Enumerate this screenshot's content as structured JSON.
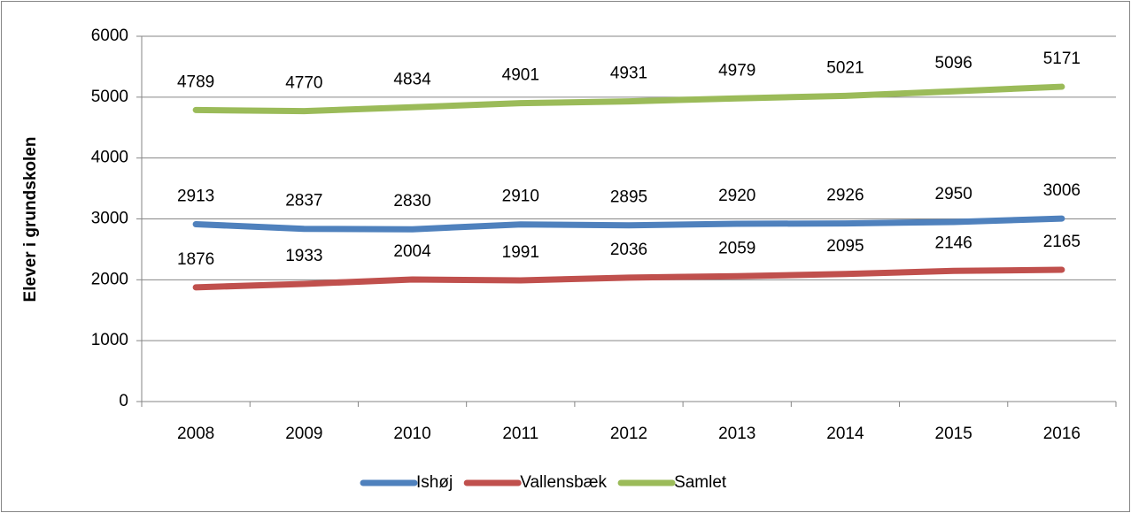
{
  "chart_data": {
    "type": "line",
    "y_label": "Elever i grundskolen",
    "categories": [
      "2008",
      "2009",
      "2010",
      "2011",
      "2012",
      "2013",
      "2014",
      "2015",
      "2016"
    ],
    "series": [
      {
        "name": "Ishøj",
        "color": "#4f81bd",
        "values": [
          2913,
          2837,
          2830,
          2910,
          2895,
          2920,
          2926,
          2950,
          3006
        ]
      },
      {
        "name": "Vallensbæk",
        "color": "#c0504d",
        "values": [
          1876,
          1933,
          2004,
          1991,
          2036,
          2059,
          2095,
          2146,
          2165
        ]
      },
      {
        "name": "Samlet",
        "color": "#9bbb59",
        "values": [
          4789,
          4770,
          4834,
          4901,
          4931,
          4979,
          5021,
          5096,
          5171
        ]
      }
    ],
    "ylim": [
      0,
      6000
    ],
    "yticks": [
      0,
      1000,
      2000,
      3000,
      4000,
      5000,
      6000
    ],
    "grid": true,
    "legend": "bottom"
  }
}
